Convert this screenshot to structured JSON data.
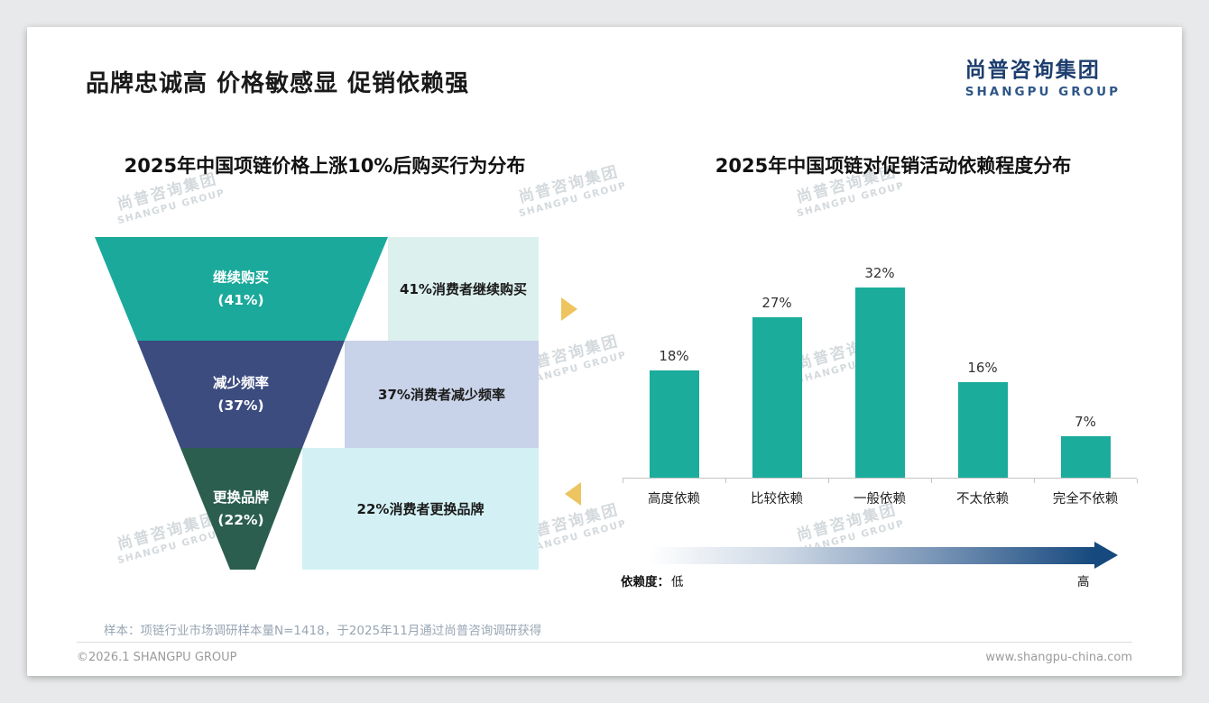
{
  "page": {
    "title": "品牌忠诚高 价格敏感显 促销依赖强",
    "logo": {
      "zh": "尚普咨询集团",
      "en": "SHANGPU GROUP"
    },
    "watermark": {
      "zh": "尚普咨询集团",
      "en": "SHANGPU GROUP"
    },
    "sample_note": "样本：项链行业市场调研样本量N=1418，于2025年11月通过尚普咨询调研获得",
    "footer": {
      "left": "©2026.1 SHANGPU GROUP",
      "right": "www.shangpu-china.com"
    }
  },
  "chart_data": [
    {
      "type": "funnel",
      "title": "2025年中国项链价格上涨10%后购买行为分布",
      "categories": [
        "继续购买",
        "减少频率",
        "更换品牌"
      ],
      "values": [
        41,
        37,
        22
      ],
      "segments": [
        {
          "label": "继续购买",
          "value_label": "(41%)",
          "desc": "41%消费者继续购买",
          "fill": "#1ba99b",
          "panel": "#dcf1ee"
        },
        {
          "label": "减少频率",
          "value_label": "(37%)",
          "desc": "37%消费者减少频率",
          "fill": "#3c4c7f",
          "panel": "#c8d2e8"
        },
        {
          "label": "更换品牌",
          "value_label": "(22%)",
          "desc": "22%消费者更换品牌",
          "fill": "#2b5e4f",
          "panel": "#d3f1f5"
        }
      ],
      "accent_arrow_color": "#edc45f"
    },
    {
      "type": "bar",
      "title": "2025年中国项链对促销活动依赖程度分布",
      "categories": [
        "高度依赖",
        "比较依赖",
        "一般依赖",
        "不太依赖",
        "完全不依赖"
      ],
      "values": [
        18,
        27,
        32,
        16,
        7
      ],
      "value_labels": [
        "18%",
        "27%",
        "32%",
        "16%",
        "7%"
      ],
      "bar_color": "#1bac9c",
      "ylim": [
        0,
        35
      ],
      "grid": false,
      "legend": "none",
      "axis_note": {
        "label": "依赖度：",
        "low": "低",
        "high": "高",
        "gradient_end_color": "#16497e"
      }
    }
  ]
}
